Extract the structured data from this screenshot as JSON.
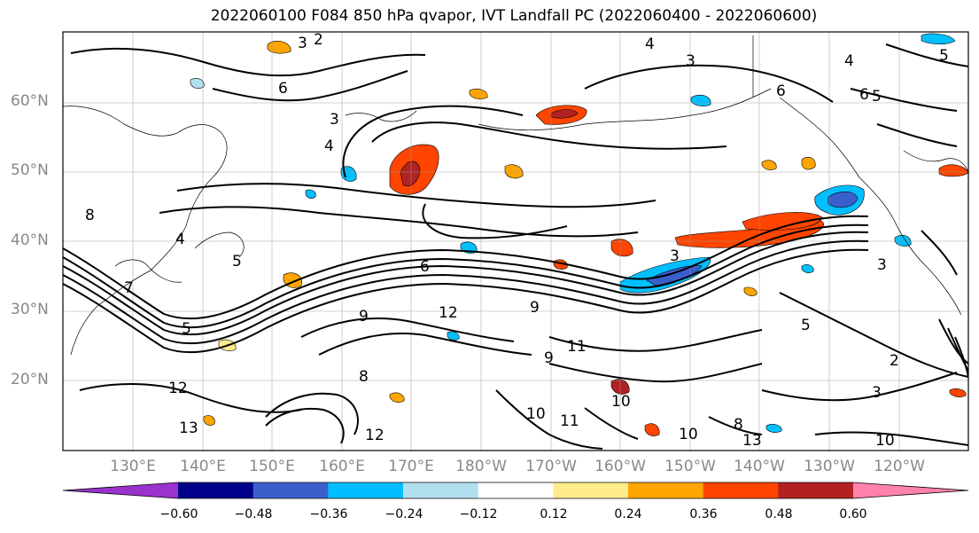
{
  "title": "2022060100 F084 850 hPa qvapor, IVT Landfall PC (2022060400 - 2022060600)",
  "lat_labels": [
    "60°N",
    "50°N",
    "40°N",
    "30°N",
    "20°N"
  ],
  "lon_labels": [
    "130°E",
    "140°E",
    "150°E",
    "160°E",
    "170°E",
    "180°W",
    "170°W",
    "160°W",
    "150°W",
    "140°W",
    "130°W",
    "120°W"
  ],
  "colorbar": {
    "ticks": [
      "−0.60",
      "−0.48",
      "−0.36",
      "−0.24",
      "−0.12",
      "0.12",
      "0.24",
      "0.36",
      "0.48",
      "0.60"
    ],
    "colors": [
      "#9a32cd",
      "#00008b",
      "#3a5fcd",
      "#00bfff",
      "#b2dfee",
      "#ffffff",
      "#ffec8b",
      "#ffa500",
      "#ff4500",
      "#b22222",
      "#ff82ab"
    ]
  },
  "contour_labels": [
    "3",
    "2",
    "4",
    "3",
    "4",
    "6",
    "6",
    "5",
    "3",
    "4",
    "5",
    "6",
    "8",
    "5",
    "4",
    "3",
    "12",
    "9",
    "11",
    "9",
    "10",
    "8",
    "13",
    "10",
    "11",
    "10",
    "13",
    "12",
    "3",
    "5",
    "2",
    "3",
    "6",
    "5",
    "7",
    "9",
    "12",
    "10",
    "8"
  ]
}
